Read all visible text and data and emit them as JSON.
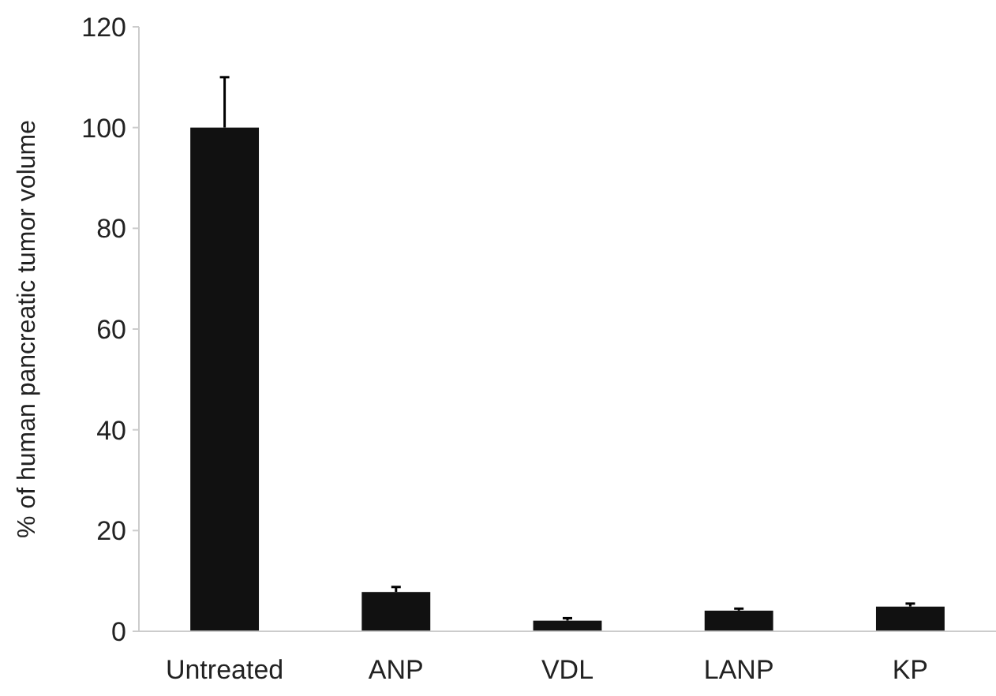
{
  "chart_data": {
    "type": "bar",
    "ylabel": "% of human pancreatic tumor volume",
    "categories": [
      "Untreated",
      "ANP",
      "VDL",
      "LANP",
      "KP"
    ],
    "values": [
      100,
      7.8,
      2.1,
      4.1,
      4.9
    ],
    "errors": [
      [
        100,
        110
      ],
      [
        7.8,
        8.8
      ],
      [
        2.1,
        2.6
      ],
      [
        4.1,
        4.5
      ],
      [
        4.9,
        5.5
      ]
    ],
    "color": "#111111",
    "ylim": [
      0,
      120
    ],
    "yticks": [
      0,
      20,
      40,
      60,
      80,
      100,
      120
    ],
    "grid": false
  }
}
